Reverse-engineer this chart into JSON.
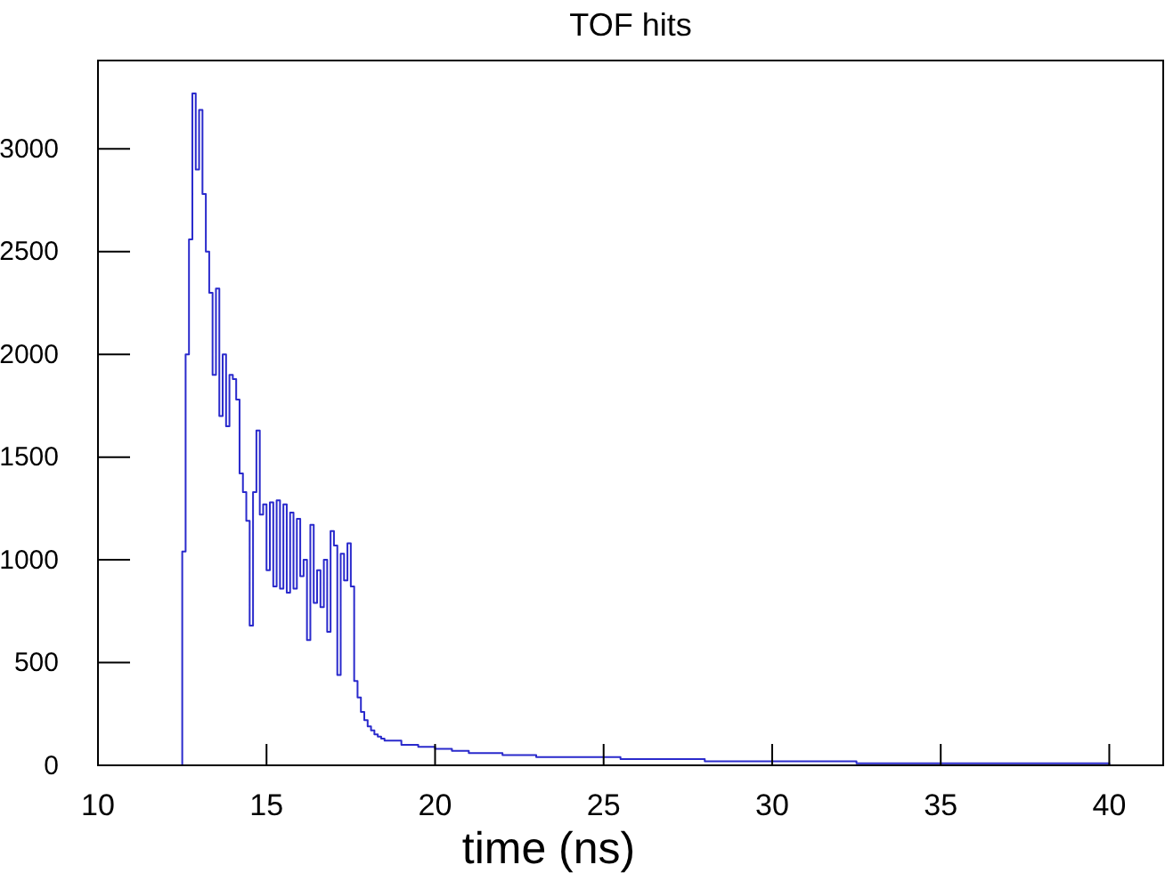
{
  "chart_data": {
    "type": "histogram",
    "title": "TOF hits",
    "xlabel": "time (ns)",
    "color": "#2a2acc",
    "bins": [
      12.5,
      12.6,
      12.7,
      12.8,
      12.9,
      13.0,
      13.1,
      13.2,
      13.3,
      13.4,
      13.5,
      13.6,
      13.7,
      13.8,
      13.9,
      14.0,
      14.1,
      14.2,
      14.3,
      14.4,
      14.5,
      14.6,
      14.7,
      14.8,
      14.9,
      15.0,
      15.1,
      15.2,
      15.3,
      15.4,
      15.5,
      15.6,
      15.7,
      15.8,
      15.9,
      16.0,
      16.1,
      16.2,
      16.3,
      16.4,
      16.5,
      16.6,
      16.7,
      16.8,
      16.9,
      17.0,
      17.1,
      17.2,
      17.3,
      17.4,
      17.5,
      17.6,
      17.7,
      17.8,
      17.9,
      18.0,
      18.1,
      18.2,
      18.3,
      18.4,
      18.5,
      19,
      19.5,
      20,
      20.5,
      21,
      21.5,
      22,
      22.5,
      23,
      23.5,
      24,
      24.5,
      25,
      25.5,
      26,
      26.5,
      27,
      27.5,
      28,
      28.5,
      29,
      29.5,
      30,
      30.5,
      31,
      31.5,
      32,
      32.5,
      33,
      33.5,
      34,
      34.5,
      35,
      35.5,
      36,
      36.5,
      37,
      37.5,
      38,
      38.5,
      39,
      39.5,
      40
    ],
    "values": [
      1040,
      2000,
      2560,
      3270,
      2900,
      3190,
      2780,
      2500,
      2300,
      1900,
      2320,
      1700,
      2000,
      1650,
      1900,
      1880,
      1780,
      1420,
      1330,
      1190,
      680,
      1330,
      1630,
      1220,
      1270,
      950,
      1280,
      870,
      1290,
      860,
      1270,
      840,
      1230,
      860,
      1200,
      920,
      1000,
      610,
      1170,
      790,
      950,
      770,
      1000,
      650,
      1140,
      1070,
      440,
      1030,
      900,
      1080,
      870,
      410,
      330,
      260,
      220,
      190,
      170,
      150,
      140,
      130,
      120,
      100,
      90,
      80,
      70,
      60,
      60,
      50,
      50,
      40,
      40,
      40,
      40,
      40,
      30,
      30,
      30,
      30,
      30,
      20,
      20,
      20,
      20,
      20,
      20,
      20,
      20,
      20,
      10,
      10,
      10,
      10,
      10,
      10,
      10,
      10,
      10,
      10,
      10,
      10,
      10,
      10,
      10
    ],
    "xlim": [
      10,
      41.6
    ],
    "ylim": [
      0,
      3430
    ],
    "xticks": [
      10,
      15,
      20,
      25,
      30,
      35,
      40
    ],
    "yticks": [
      0,
      500,
      1000,
      1500,
      2000,
      2500,
      3000
    ],
    "grid": false
  }
}
